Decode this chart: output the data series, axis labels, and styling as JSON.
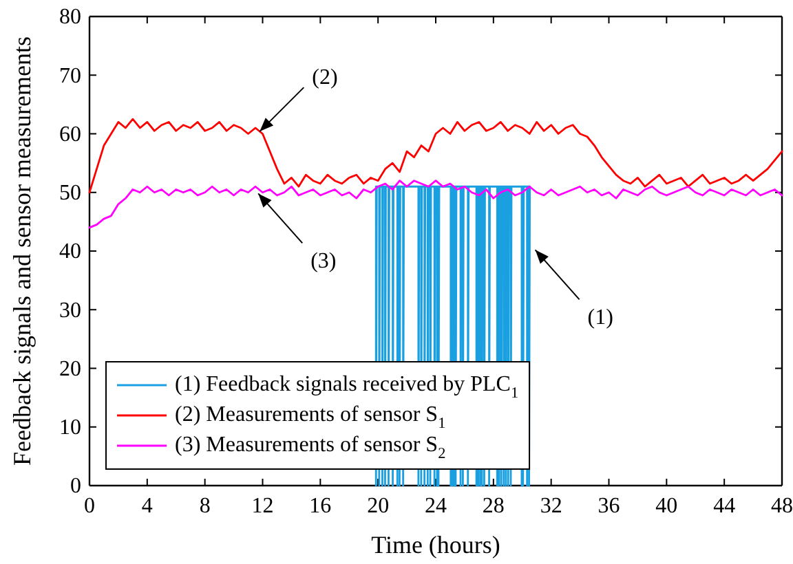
{
  "chart_data": {
    "type": "line",
    "xlabel": "Time (hours)",
    "ylabel": "Feedback signals and sensor measurements",
    "x": [
      0,
      0.5,
      1,
      1.5,
      2,
      2.5,
      3,
      3.5,
      4,
      4.5,
      5,
      5.5,
      6,
      6.5,
      7,
      7.5,
      8,
      8.5,
      9,
      9.5,
      10,
      10.5,
      11,
      11.5,
      12,
      12.5,
      13,
      13.5,
      14,
      14.5,
      15,
      15.5,
      16,
      16.5,
      17,
      17.5,
      18,
      18.5,
      19,
      19.5,
      20,
      20.5,
      21,
      21.5,
      22,
      22.5,
      23,
      23.5,
      24,
      24.5,
      25,
      25.5,
      26,
      26.5,
      27,
      27.5,
      28,
      28.5,
      29,
      29.5,
      30,
      30.5,
      31,
      31.5,
      32,
      32.5,
      33,
      33.5,
      34,
      34.5,
      35,
      35.5,
      36,
      36.5,
      37,
      37.5,
      38,
      38.5,
      39,
      39.5,
      40,
      40.5,
      41,
      41.5,
      42,
      42.5,
      43,
      43.5,
      44,
      44.5,
      45,
      45.5,
      46,
      46.5,
      47,
      47.5,
      48
    ],
    "series": [
      {
        "name": "(1) Feedback signals received by PLC$_{1}$",
        "color": "#1aa0e0",
        "x": [
          19.86,
          19.86,
          19.91,
          20.08,
          20.08,
          20.13,
          20.3,
          20.3,
          20.35,
          20.49,
          20.49,
          20.54,
          20.73,
          20.73,
          20.78,
          21.02,
          21.02,
          21.07,
          21.34,
          21.34,
          21.39,
          21.49,
          21.49,
          21.54,
          21.74,
          21.74,
          21.79,
          22.8,
          22.8,
          22.85,
          22.99,
          22.99,
          23.04,
          23.22,
          23.22,
          23.27,
          23.44,
          23.44,
          23.49,
          23.62,
          23.62,
          23.67,
          23.91,
          23.91,
          23.96,
          24.09,
          24.09,
          24.14,
          24.19,
          24.19,
          24.24,
          25.04,
          25.04,
          25.09,
          25.16,
          25.16,
          25.21,
          25.29,
          25.29,
          25.34,
          25.38,
          25.38,
          25.43,
          25.72,
          25.72,
          25.77,
          25.88,
          25.88,
          25.93,
          26.23,
          26.23,
          26.28,
          26.82,
          26.82,
          26.87,
          26.94,
          26.94,
          26.99,
          27.08,
          27.08,
          27.13,
          27.2,
          27.2,
          27.25,
          27.36,
          27.36,
          27.41,
          27.7,
          27.7,
          27.75,
          28.26,
          28.26,
          28.31,
          28.39,
          28.39,
          28.44,
          28.54,
          28.54,
          28.59,
          28.71,
          28.71,
          28.76,
          28.86,
          28.86,
          28.91,
          29.02,
          29.02,
          29.07,
          29.2,
          29.2,
          29.25,
          29.96,
          29.96,
          30.01,
          30.05,
          30.05,
          30.1,
          30.33,
          30.33,
          30.38,
          30.47,
          30.47,
          30.52
        ],
        "values": [
          51,
          0,
          51,
          51,
          0,
          51,
          51,
          0,
          51,
          51,
          0,
          51,
          51,
          0,
          51,
          51,
          0,
          51,
          51,
          0,
          51,
          51,
          0,
          51,
          51,
          0,
          51,
          51,
          0,
          51,
          51,
          0,
          51,
          51,
          0,
          51,
          51,
          0,
          51,
          51,
          0,
          51,
          51,
          0,
          51,
          51,
          0,
          51,
          51,
          0,
          51,
          51,
          0,
          51,
          51,
          0,
          51,
          51,
          0,
          51,
          51,
          0,
          51,
          51,
          0,
          51,
          51,
          0,
          51,
          51,
          0,
          51,
          51,
          0,
          51,
          51,
          0,
          51,
          51,
          0,
          51,
          51,
          0,
          51,
          51,
          0,
          51,
          51,
          0,
          51,
          51,
          0,
          51,
          51,
          0,
          51,
          51,
          0,
          51,
          51,
          0,
          51,
          51,
          0,
          51,
          51,
          0,
          51,
          51,
          0,
          51,
          51,
          0,
          51,
          51,
          0,
          51,
          51,
          0,
          51,
          51,
          0,
          51
        ]
      },
      {
        "name": "(2) Measurements of sensor S$_{1}$",
        "color": "#ff0000",
        "values": [
          50,
          54,
          58,
          60,
          62,
          61,
          62.5,
          61,
          62,
          60.5,
          61.5,
          62,
          60.5,
          61.5,
          61,
          62,
          60.5,
          61,
          62,
          60.5,
          61.5,
          61,
          60,
          61,
          60,
          57,
          54,
          51.5,
          52.5,
          51,
          53,
          52,
          51.5,
          53,
          52,
          51.5,
          52.5,
          53,
          51.5,
          52.5,
          52,
          54,
          55,
          53.5,
          57,
          56,
          58,
          57,
          60,
          61,
          60,
          62,
          60.5,
          61.5,
          62,
          60.5,
          61,
          62,
          60.5,
          61.5,
          61,
          60,
          62,
          60.5,
          61.5,
          60,
          61,
          61.5,
          60,
          59.5,
          58,
          56,
          54.5,
          53,
          52,
          51.5,
          52.5,
          51,
          52,
          53,
          51.5,
          52,
          52.5,
          51,
          52,
          53,
          51.5,
          52,
          52.5,
          51.5,
          52,
          53,
          52,
          53,
          54,
          55.5,
          57
        ]
      },
      {
        "name": "(3) Measurements of sensor S$_{2}$",
        "color": "#ff00ff",
        "values": [
          44,
          44.5,
          45.5,
          46,
          48,
          49,
          50.5,
          50,
          51,
          50,
          50.5,
          49.5,
          50.5,
          50,
          50.5,
          49.5,
          50,
          51,
          50,
          50.5,
          49.5,
          50.5,
          50,
          51,
          50,
          50.5,
          49.5,
          50,
          51,
          49.5,
          50,
          50.5,
          49.5,
          50,
          50.5,
          49.5,
          50,
          49,
          50.5,
          50,
          51,
          51.5,
          50.5,
          52,
          51,
          52,
          51.5,
          51,
          52,
          51,
          51.5,
          50.5,
          51,
          50,
          49.5,
          50.5,
          49,
          50,
          50.5,
          49.5,
          50,
          51,
          50,
          49.5,
          50.5,
          49.5,
          50,
          50.5,
          51,
          50,
          50.5,
          49.5,
          50,
          49,
          50.5,
          50,
          49.5,
          50.5,
          51,
          50,
          49.5,
          50,
          50.5,
          51,
          50,
          49.5,
          50.5,
          50,
          49.5,
          50.5,
          50,
          49.5,
          50.5,
          49.5,
          50,
          50.5,
          49.5
        ]
      }
    ],
    "annotations": [
      {
        "text": "(2)",
        "x": 11.8,
        "y": 60.4
      },
      {
        "text": "(3)",
        "x": 11.7,
        "y": 49.8
      },
      {
        "text": "(1)",
        "x": 30.9,
        "y": 40.2
      }
    ],
    "xlim": [
      0,
      48
    ],
    "xticks": [
      0,
      4,
      8,
      12,
      16,
      20,
      24,
      28,
      32,
      36,
      40,
      44,
      48
    ],
    "ylim": [
      0,
      80
    ],
    "yticks": [
      0,
      10,
      20,
      30,
      40,
      50,
      60,
      70,
      80
    ],
    "grid": false,
    "legend": "bottom left",
    "marker": "none",
    "line_style": "solid"
  }
}
